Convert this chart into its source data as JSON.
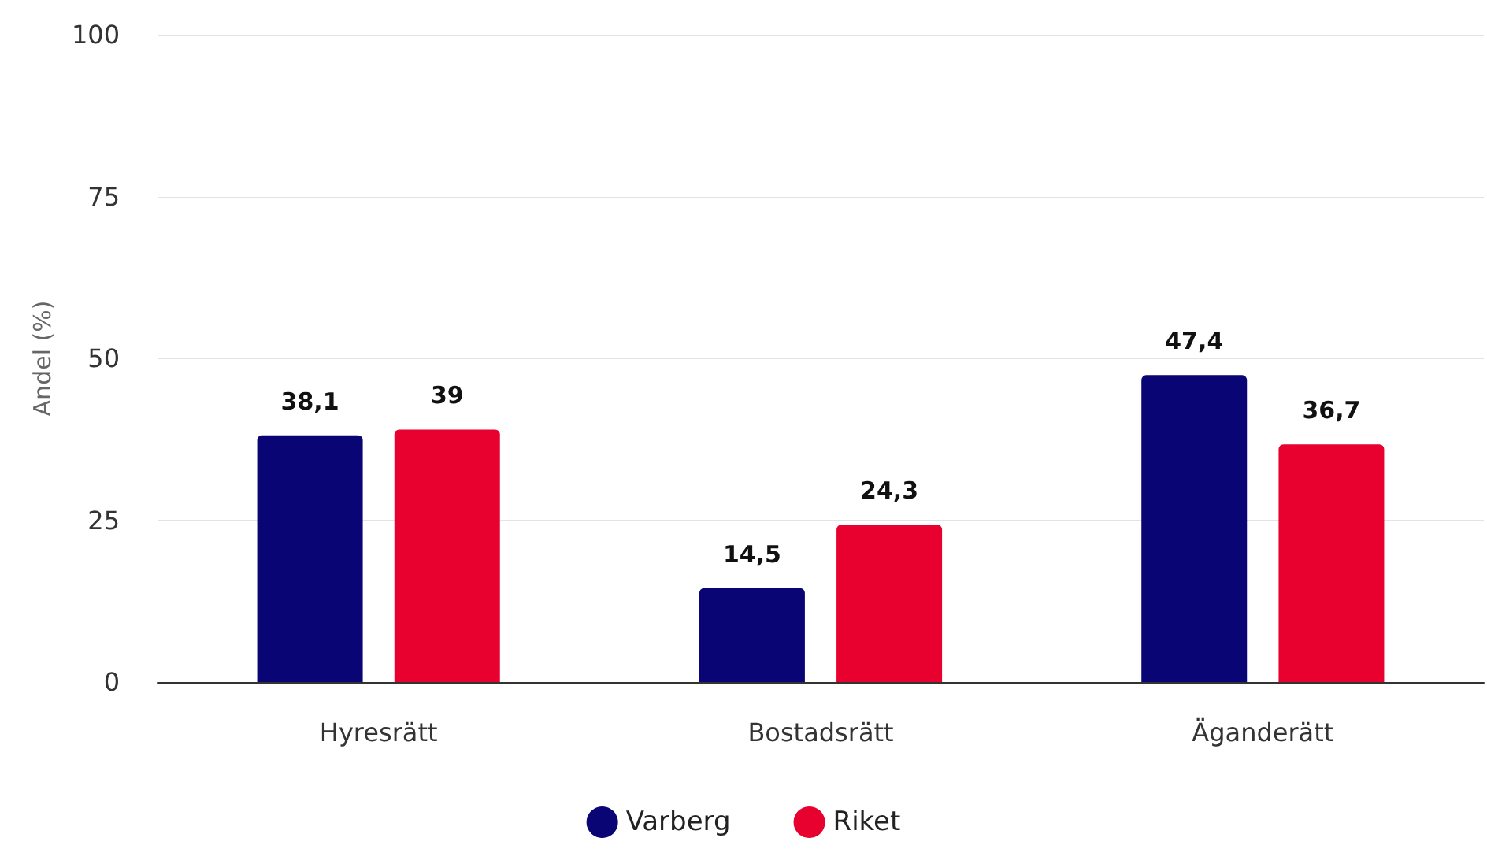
{
  "chart_data": {
    "type": "bar",
    "ylabel": "Andel (%)",
    "categories": [
      "Hyresrätt",
      "Bostadsrätt",
      "Äganderätt"
    ],
    "series": [
      {
        "name": "Varberg",
        "color": "#0a0575",
        "values": [
          38.1,
          14.5,
          47.4
        ],
        "value_labels": [
          "38,1",
          "14,5",
          "47,4"
        ]
      },
      {
        "name": "Riket",
        "color": "#e8002f",
        "values": [
          39,
          24.3,
          36.7
        ],
        "value_labels": [
          "39",
          "24,3",
          "36,7"
        ]
      }
    ],
    "ylim": [
      0,
      100
    ],
    "yticks": [
      0,
      25,
      50,
      75,
      100
    ],
    "grid": "y",
    "legend": "bottom"
  }
}
